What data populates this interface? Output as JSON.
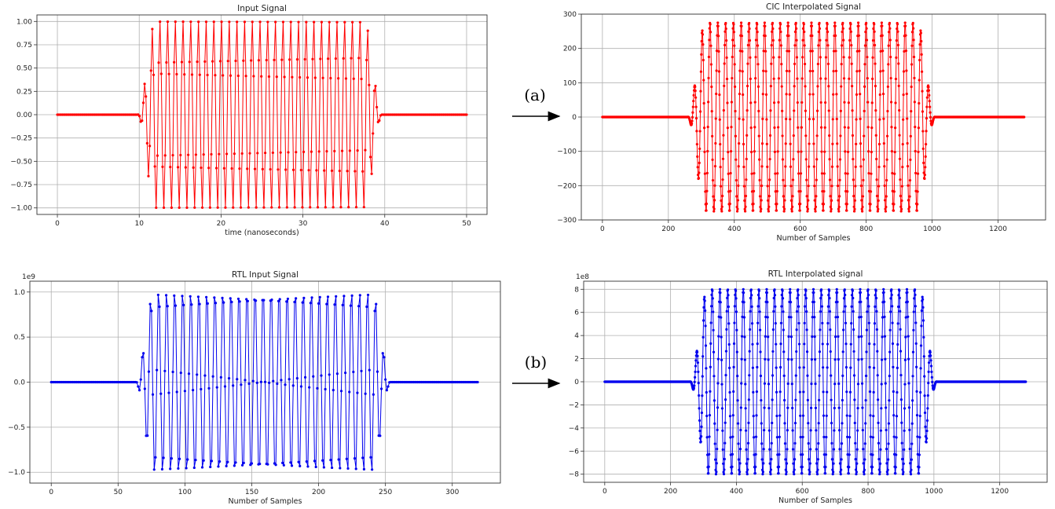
{
  "annotations": {
    "a": {
      "text": "(a)"
    },
    "b": {
      "text": "(b)"
    }
  },
  "chart_data": [
    {
      "id": "input",
      "type": "line",
      "title": "Input Signal",
      "xlabel": "time (nanoseconds)",
      "ylabel": "",
      "offset_text": "",
      "color": "#ff0000",
      "xlim": [
        -2.5,
        52.5
      ],
      "ylim": [
        -1.07,
        1.07
      ],
      "xticks": [
        0,
        10,
        20,
        30,
        40,
        50
      ],
      "xtick_labels": [
        "0",
        "10",
        "20",
        "30",
        "40",
        "50"
      ],
      "yticks": [
        -1.0,
        -0.75,
        -0.5,
        -0.25,
        0.0,
        0.25,
        0.5,
        0.75,
        1.0
      ],
      "ytick_labels": [
        "−1.00",
        "−0.75",
        "−0.50",
        "−0.25",
        "0.00",
        "0.25",
        "0.50",
        "0.75",
        "1.00"
      ],
      "grid": true,
      "series": [
        {
          "signal": {
            "x_start": 0,
            "x_end": 50,
            "n_points": 320,
            "amplitude": 1.0,
            "cycles": 17.5,
            "burst_start": 12.0,
            "burst_end": 37.5,
            "ramp": 2.2
          }
        }
      ]
    },
    {
      "id": "cic",
      "type": "line",
      "title": "CIC Interpolated Signal",
      "xlabel": "Number of Samples",
      "ylabel": "",
      "offset_text": "",
      "color": "#ff0000",
      "xlim": [
        -64,
        1344
      ],
      "ylim": [
        -300,
        300
      ],
      "xticks": [
        0,
        200,
        400,
        600,
        800,
        1000,
        1200
      ],
      "xtick_labels": [
        "0",
        "200",
        "400",
        "600",
        "800",
        "1000",
        "1200"
      ],
      "yticks": [
        -300,
        -200,
        -100,
        0,
        100,
        200,
        300
      ],
      "ytick_labels": [
        "−300",
        "−200",
        "−100",
        "0",
        "100",
        "200",
        "300"
      ],
      "grid": true,
      "series": [
        {
          "signal": {
            "x_start": 0,
            "x_end": 1279,
            "n_points": 1280,
            "amplitude": 275,
            "cycles": 17.5,
            "burst_start": 313,
            "burst_end": 955,
            "ramp": 55
          }
        }
      ]
    },
    {
      "id": "rtl-input",
      "type": "line",
      "title": "RTL Input Signal",
      "xlabel": "Number of Samples",
      "ylabel": "",
      "offset_text": "1e9",
      "color": "#0000ee",
      "xlim": [
        -16,
        336
      ],
      "ylim": [
        -1.12,
        1.12
      ],
      "xticks": [
        0,
        50,
        100,
        150,
        200,
        250,
        300
      ],
      "xtick_labels": [
        "0",
        "50",
        "100",
        "150",
        "200",
        "250",
        "300"
      ],
      "yticks": [
        -1.0,
        -0.5,
        0.0,
        0.5,
        1.0
      ],
      "ytick_labels": [
        "−1.0",
        "−0.5",
        "0.0",
        "0.5",
        "1.0"
      ],
      "grid": true,
      "series": [
        {
          "signal": {
            "x_start": 0,
            "x_end": 319,
            "n_points": 320,
            "amplitude": 1.05,
            "cycles": 17.5,
            "burst_start": 77,
            "burst_end": 240,
            "ramp": 14
          }
        }
      ]
    },
    {
      "id": "rtl-interp",
      "type": "line",
      "title": "RTL Interpolated signal",
      "xlabel": "Number of Samples",
      "ylabel": "",
      "offset_text": "1e8",
      "color": "#0000ee",
      "xlim": [
        -64,
        1344
      ],
      "ylim": [
        -8.7,
        8.7
      ],
      "xticks": [
        0,
        200,
        400,
        600,
        800,
        1000,
        1200
      ],
      "xtick_labels": [
        "0",
        "200",
        "400",
        "600",
        "800",
        "1000",
        "1200"
      ],
      "yticks": [
        -8,
        -6,
        -4,
        -2,
        0,
        2,
        4,
        6,
        8
      ],
      "ytick_labels": [
        "−8",
        "−6",
        "−4",
        "−2",
        "0",
        "2",
        "4",
        "6",
        "8"
      ],
      "grid": true,
      "series": [
        {
          "signal": {
            "x_start": 0,
            "x_end": 1279,
            "n_points": 1280,
            "amplitude": 8.0,
            "cycles": 17.5,
            "burst_start": 313,
            "burst_end": 955,
            "ramp": 55
          }
        }
      ]
    }
  ]
}
